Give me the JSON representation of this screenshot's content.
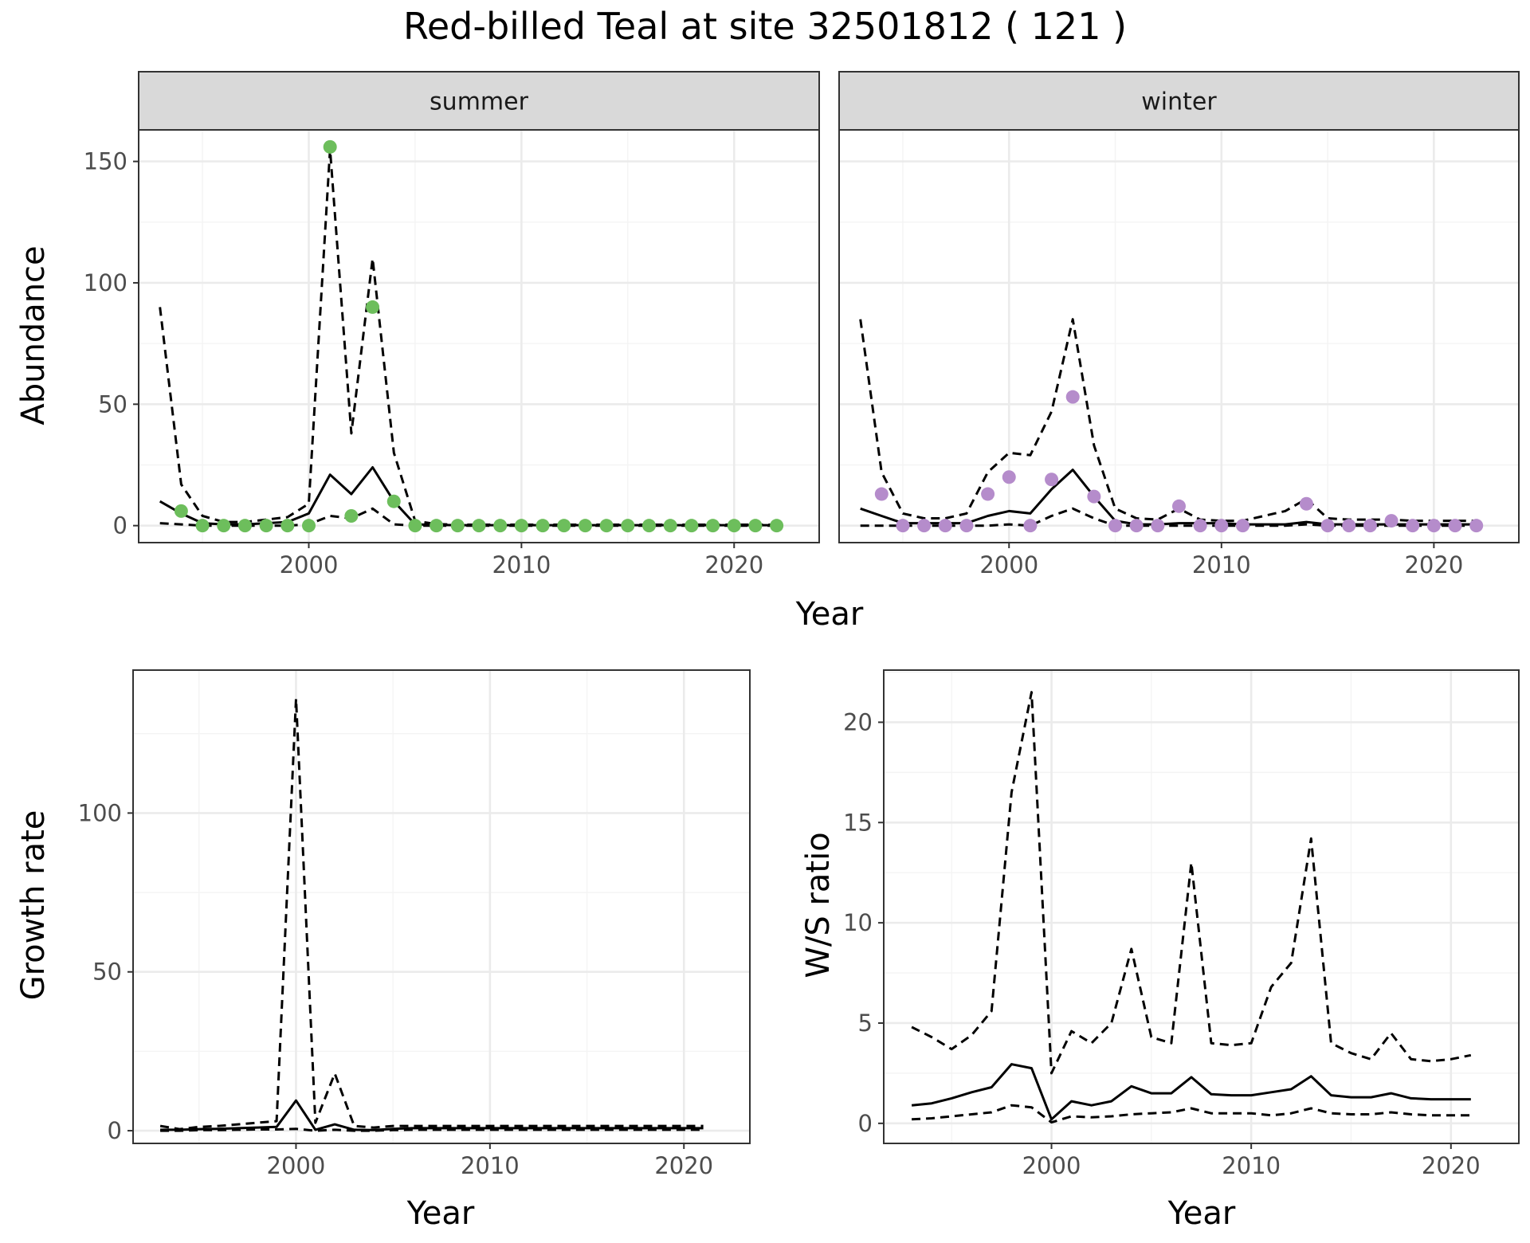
{
  "title": "Red-billed Teal at site 32501812 ( 121 )",
  "colors": {
    "summer_points": "#6DBE5C",
    "winter_points": "#B58CCB",
    "line": "#000000",
    "strip_fill": "#D9D9D9",
    "grid_major": "#EBEBEB",
    "grid_minor": "#F4F4F4"
  },
  "chart_data": [
    {
      "id": "abundance_summer",
      "type": "scatter",
      "facet_label": "summer",
      "ylabel": "Abundance",
      "xlabel": "Year",
      "xlim": [
        1992,
        2024
      ],
      "ylim": [
        -7,
        163
      ],
      "xticks": [
        2000,
        2010,
        2020
      ],
      "yticks": [
        0,
        50,
        100,
        150
      ],
      "grid": true,
      "point_color": "#6DBE5C",
      "points": {
        "x": [
          1994,
          1995,
          1996,
          1997,
          1998,
          1999,
          2000,
          2001,
          2002,
          2003,
          2004,
          2005,
          2006,
          2007,
          2008,
          2009,
          2010,
          2011,
          2012,
          2013,
          2014,
          2015,
          2016,
          2017,
          2018,
          2019,
          2020,
          2021,
          2022
        ],
        "y": [
          6,
          0,
          0,
          0,
          0,
          0,
          0,
          156,
          4,
          90,
          10,
          0,
          0,
          0,
          0,
          0,
          0,
          0,
          0,
          0,
          0,
          0,
          0,
          0,
          0,
          0,
          0,
          0,
          0
        ]
      },
      "lines": [
        {
          "style": "solid",
          "x": [
            1993,
            1994,
            1995,
            1996,
            1997,
            1998,
            1999,
            2000,
            2001,
            2002,
            2003,
            2004,
            2005,
            2006,
            2007,
            2008,
            2009,
            2010,
            2011,
            2012,
            2013,
            2014,
            2015,
            2016,
            2017,
            2018,
            2019,
            2020,
            2021,
            2022
          ],
          "y": [
            10,
            5,
            1,
            0.5,
            0.5,
            1,
            1.5,
            5,
            21,
            13,
            24,
            10,
            0.5,
            0.3,
            0.2,
            0.2,
            0.2,
            0.2,
            0.2,
            0.2,
            0.2,
            0.2,
            0.2,
            0.2,
            0.2,
            0.2,
            0.2,
            0.2,
            0.2,
            0.2
          ]
        },
        {
          "style": "dashed",
          "x": [
            1993,
            1994,
            1995,
            1996,
            1997,
            1998,
            1999,
            2000,
            2001,
            2002,
            2003,
            2004,
            2005,
            2006,
            2007,
            2008,
            2009,
            2010,
            2011,
            2012,
            2013,
            2014,
            2015,
            2016,
            2017,
            2018,
            2019,
            2020,
            2021,
            2022
          ],
          "y": [
            90,
            17,
            4,
            1.5,
            1.5,
            2.5,
            3.5,
            9,
            155,
            38,
            110,
            30,
            2,
            0.6,
            0.4,
            0.4,
            0.4,
            0.4,
            0.4,
            0.4,
            0.4,
            0.4,
            0.4,
            0.4,
            0.4,
            0.4,
            0.4,
            0.4,
            0.4,
            0.4
          ]
        },
        {
          "style": "dashed",
          "x": [
            1993,
            1994,
            1995,
            1996,
            1997,
            1998,
            1999,
            2000,
            2001,
            2002,
            2003,
            2004,
            2005,
            2006,
            2007,
            2008,
            2009,
            2010,
            2011,
            2012,
            2013,
            2014,
            2015,
            2016,
            2017,
            2018,
            2019,
            2020,
            2021,
            2022
          ],
          "y": [
            1,
            0.5,
            0,
            0,
            0,
            0,
            0,
            0.5,
            4,
            3,
            7,
            0.5,
            0,
            0,
            0,
            0,
            0,
            0,
            0,
            0,
            0,
            0,
            0,
            0,
            0,
            0,
            0,
            0,
            0,
            0
          ]
        }
      ]
    },
    {
      "id": "abundance_winter",
      "type": "scatter",
      "facet_label": "winter",
      "ylabel": "",
      "xlabel": "Year",
      "xlim": [
        1992,
        2024
      ],
      "ylim": [
        -7,
        163
      ],
      "xticks": [
        2000,
        2010,
        2020
      ],
      "yticks": [
        0,
        50,
        100,
        150
      ],
      "grid": true,
      "point_color": "#B58CCB",
      "points": {
        "x": [
          1994,
          1995,
          1996,
          1997,
          1998,
          1999,
          2000,
          2001,
          2002,
          2003,
          2004,
          2005,
          2006,
          2007,
          2008,
          2009,
          2010,
          2011,
          2014,
          2015,
          2016,
          2017,
          2018,
          2019,
          2020,
          2021,
          2022
        ],
        "y": [
          13,
          0,
          0,
          0,
          0,
          13,
          20,
          0,
          19,
          53,
          12,
          0,
          0,
          0,
          8,
          0,
          0,
          0,
          9,
          0,
          0,
          0,
          2,
          0,
          0,
          0,
          0
        ]
      },
      "lines": [
        {
          "style": "solid",
          "x": [
            1993,
            1994,
            1995,
            1996,
            1997,
            1998,
            1999,
            2000,
            2001,
            2002,
            2003,
            2004,
            2005,
            2006,
            2007,
            2008,
            2009,
            2010,
            2011,
            2012,
            2013,
            2014,
            2015,
            2016,
            2017,
            2018,
            2019,
            2020,
            2021,
            2022
          ],
          "y": [
            7,
            4,
            1,
            1,
            1,
            1,
            4,
            6,
            5,
            15,
            23,
            12,
            2,
            0.5,
            0.5,
            1,
            1,
            1,
            0.5,
            0.5,
            0.5,
            1.5,
            0.5,
            0.5,
            0.5,
            0.5,
            0.5,
            0.5,
            0.5,
            0.5
          ]
        },
        {
          "style": "dashed",
          "x": [
            1993,
            1994,
            1995,
            1996,
            1997,
            1998,
            1999,
            2000,
            2001,
            2002,
            2003,
            2004,
            2005,
            2006,
            2007,
            2008,
            2009,
            2010,
            2011,
            2012,
            2013,
            2014,
            2015,
            2016,
            2017,
            2018,
            2019,
            2020,
            2021,
            2022
          ],
          "y": [
            85,
            22,
            5,
            3,
            3,
            5,
            22,
            30,
            29,
            47,
            85,
            33,
            7,
            3,
            2.5,
            7,
            2.5,
            2,
            2,
            4,
            6,
            11,
            3,
            2.5,
            2.5,
            2.5,
            2,
            2,
            2,
            2
          ]
        },
        {
          "style": "dashed",
          "x": [
            1993,
            1994,
            1995,
            1996,
            1997,
            1998,
            1999,
            2000,
            2001,
            2002,
            2003,
            2004,
            2005,
            2006,
            2007,
            2008,
            2009,
            2010,
            2011,
            2012,
            2013,
            2014,
            2015,
            2016,
            2017,
            2018,
            2019,
            2020,
            2021,
            2022
          ],
          "y": [
            0,
            0,
            0,
            0,
            0,
            0,
            0,
            0.5,
            0,
            4,
            7,
            3,
            0,
            0,
            0,
            0,
            0,
            0,
            0,
            0,
            0,
            0.5,
            0,
            0,
            0,
            0,
            0,
            0,
            0,
            0
          ]
        }
      ]
    },
    {
      "id": "growth_rate",
      "type": "line",
      "ylabel": "Growth rate",
      "xlabel": "Year",
      "xlim": [
        1991.6,
        2023.4
      ],
      "ylim": [
        -4,
        145
      ],
      "xticks": [
        2000,
        2010,
        2020
      ],
      "yticks": [
        0,
        50,
        100
      ],
      "grid": true,
      "lines": [
        {
          "style": "solid",
          "x": [
            1993,
            1994,
            1995,
            1996,
            1997,
            1998,
            1999,
            2000,
            2001,
            2002,
            2003,
            2004,
            2005,
            2006,
            2007,
            2008,
            2009,
            2010,
            2011,
            2012,
            2013,
            2014,
            2015,
            2016,
            2017,
            2018,
            2019,
            2020,
            2021
          ],
          "y": [
            0.3,
            0.3,
            0.5,
            0.6,
            0.8,
            1,
            1.2,
            9.5,
            0.3,
            2,
            0.3,
            0.2,
            0.6,
            0.8,
            0.8,
            0.8,
            0.8,
            0.8,
            0.8,
            0.8,
            0.8,
            0.8,
            0.8,
            0.8,
            0.8,
            0.8,
            0.8,
            0.8,
            0.8
          ]
        },
        {
          "style": "dashed",
          "x": [
            1993,
            1994,
            1995,
            1996,
            1997,
            1998,
            1999,
            2000,
            2001,
            2002,
            2003,
            2004,
            2005,
            2006,
            2007,
            2008,
            2009,
            2010,
            2011,
            2012,
            2013,
            2014,
            2015,
            2016,
            2017,
            2018,
            2019,
            2020,
            2021
          ],
          "y": [
            1.5,
            0.5,
            1.2,
            1.5,
            2,
            2.5,
            3,
            136,
            2.5,
            18,
            1.5,
            1,
            1.5,
            1.5,
            1.5,
            1.5,
            1.5,
            1.5,
            1.5,
            1.5,
            1.5,
            1.5,
            1.5,
            1.5,
            1.5,
            1.5,
            1.5,
            1.5,
            1.5
          ]
        },
        {
          "style": "dashed",
          "x": [
            1993,
            1994,
            1995,
            1996,
            1997,
            1998,
            1999,
            2000,
            2001,
            2002,
            2003,
            2004,
            2005,
            2006,
            2007,
            2008,
            2009,
            2010,
            2011,
            2012,
            2013,
            2014,
            2015,
            2016,
            2017,
            2018,
            2019,
            2020,
            2021
          ],
          "y": [
            0,
            0,
            0.2,
            0.2,
            0.3,
            0.4,
            0.4,
            0.6,
            0,
            0.3,
            0,
            0,
            0.2,
            0.3,
            0.3,
            0.3,
            0.3,
            0.3,
            0.3,
            0.3,
            0.3,
            0.3,
            0.3,
            0.3,
            0.3,
            0.3,
            0.3,
            0.3,
            0.3
          ]
        }
      ]
    },
    {
      "id": "ws_ratio",
      "type": "line",
      "ylabel": "W/S ratio",
      "xlabel": "Year",
      "xlim": [
        1991.6,
        2023.4
      ],
      "ylim": [
        -1,
        22.6
      ],
      "xticks": [
        2000,
        2010,
        2020
      ],
      "yticks": [
        0,
        5,
        10,
        15,
        20
      ],
      "grid": true,
      "lines": [
        {
          "style": "solid",
          "x": [
            1993,
            1994,
            1995,
            1996,
            1997,
            1998,
            1999,
            2000,
            2001,
            2002,
            2003,
            2004,
            2005,
            2006,
            2007,
            2008,
            2009,
            2010,
            2011,
            2012,
            2013,
            2014,
            2015,
            2016,
            2017,
            2018,
            2019,
            2020,
            2021
          ],
          "y": [
            0.9,
            1,
            1.25,
            1.55,
            1.8,
            2.95,
            2.75,
            0.2,
            1.1,
            0.9,
            1.1,
            1.85,
            1.5,
            1.5,
            2.3,
            1.45,
            1.4,
            1.4,
            1.55,
            1.7,
            2.35,
            1.4,
            1.3,
            1.3,
            1.5,
            1.25,
            1.2,
            1.2,
            1.2
          ]
        },
        {
          "style": "dashed",
          "x": [
            1993,
            1994,
            1995,
            1996,
            1997,
            1998,
            1999,
            2000,
            2001,
            2002,
            2003,
            2004,
            2005,
            2006,
            2007,
            2008,
            2009,
            2010,
            2011,
            2012,
            2013,
            2014,
            2015,
            2016,
            2017,
            2018,
            2019,
            2020,
            2021
          ],
          "y": [
            4.8,
            4.3,
            3.7,
            4.4,
            5.6,
            16.5,
            21.5,
            2.5,
            4.6,
            4,
            5,
            8.7,
            4.3,
            4,
            13,
            4,
            3.9,
            4,
            6.8,
            8,
            14.2,
            4,
            3.5,
            3.2,
            4.5,
            3.2,
            3.1,
            3.2,
            3.4
          ]
        },
        {
          "style": "dashed",
          "x": [
            1993,
            1994,
            1995,
            1996,
            1997,
            1998,
            1999,
            2000,
            2001,
            2002,
            2003,
            2004,
            2005,
            2006,
            2007,
            2008,
            2009,
            2010,
            2011,
            2012,
            2013,
            2014,
            2015,
            2016,
            2017,
            2018,
            2019,
            2020,
            2021
          ],
          "y": [
            0.2,
            0.25,
            0.35,
            0.45,
            0.55,
            0.9,
            0.8,
            0.05,
            0.35,
            0.3,
            0.35,
            0.45,
            0.5,
            0.55,
            0.75,
            0.5,
            0.5,
            0.5,
            0.4,
            0.5,
            0.75,
            0.5,
            0.45,
            0.45,
            0.55,
            0.45,
            0.4,
            0.4,
            0.4
          ]
        }
      ]
    }
  ]
}
